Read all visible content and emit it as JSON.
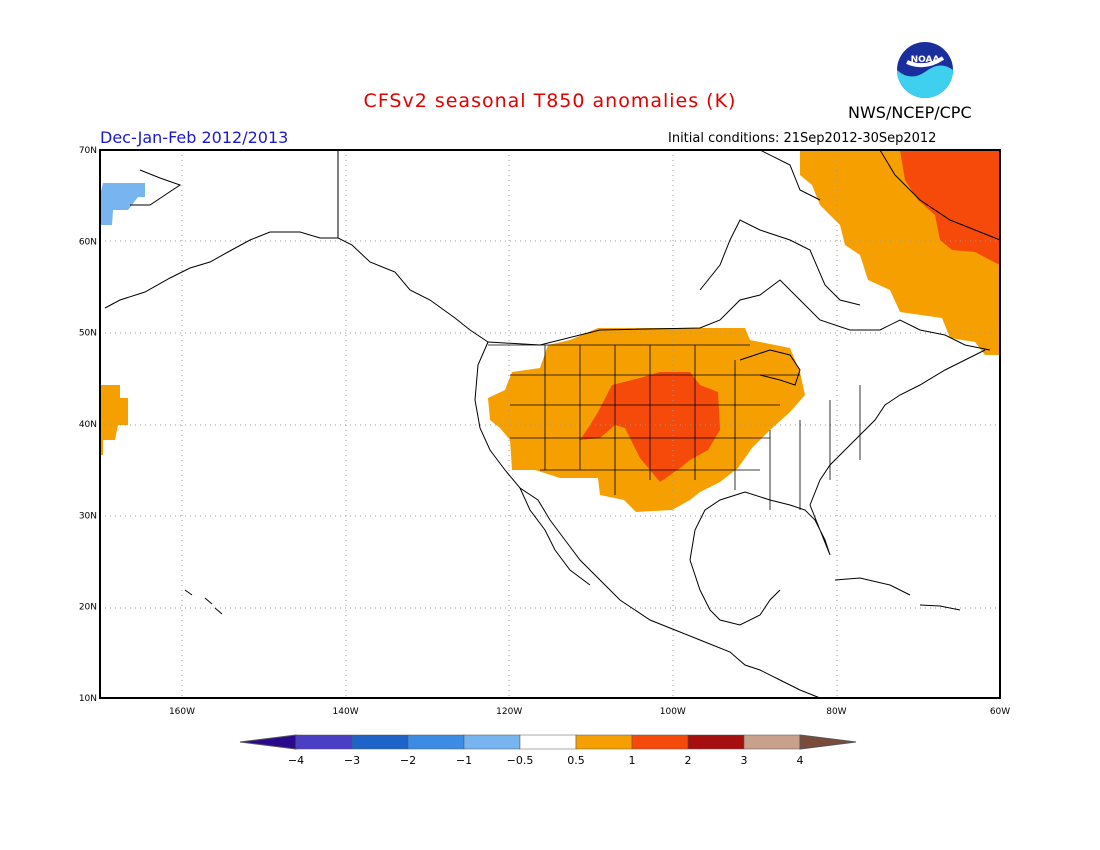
{
  "header": {
    "title": "CFSv2 seasonal T850 anomalies (K)",
    "agency": "NWS/NCEP/CPC",
    "season": "Dec-Jan-Feb 2012/2013",
    "initial_conditions": "Initial conditions: 21Sep2012-30Sep2012",
    "logo_text": "NOAA"
  },
  "map": {
    "lat_labels": [
      "70N",
      "60N",
      "50N",
      "40N",
      "30N",
      "20N",
      "10N"
    ],
    "lon_labels": [
      "160W",
      "140W",
      "120W",
      "100W",
      "80W",
      "60W"
    ]
  },
  "colorbar": {
    "tick_labels": [
      "-4",
      "-3",
      "-2",
      "-1",
      "-0.5",
      "0.5",
      "1",
      "2",
      "3",
      "4"
    ],
    "colors": [
      "#2a0a8c",
      "#4a3ec4",
      "#1e64c8",
      "#3c8ce6",
      "#78b4f0",
      "#ffffff",
      "#f5a000",
      "#f54a0a",
      "#a50f0f",
      "#c8a08c",
      "#7a4a3a"
    ]
  },
  "anomaly_colors": {
    "warm_05_1": "#f5a000",
    "warm_1_2": "#f54a0a",
    "cool_m1_m05": "#78b4f0"
  }
}
